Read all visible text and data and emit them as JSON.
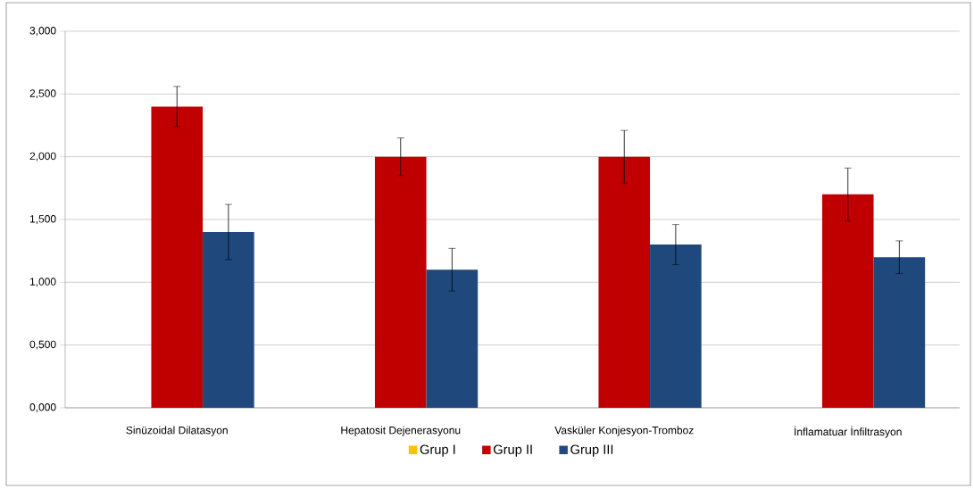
{
  "chart_data": {
    "type": "bar",
    "categories": [
      "Sinüzoidal Dilatasyon",
      "Hepatosit Dejenerasyonu",
      "Vasküler Konjesyon-Tromboz",
      "İnflamatuar İnfiltrasyon"
    ],
    "series": [
      {
        "name": "Grup I",
        "color": "#ffc000",
        "values": [
          0,
          0,
          0,
          0
        ]
      },
      {
        "name": "Grup II",
        "color": "#c00000",
        "values": [
          2.4,
          2.0,
          2.0,
          1.7
        ],
        "errors": [
          0.16,
          0.15,
          0.21,
          0.21
        ]
      },
      {
        "name": "Grup III",
        "color": "#1f497d",
        "values": [
          1.4,
          1.1,
          1.3,
          1.2
        ],
        "errors": [
          0.22,
          0.17,
          0.16,
          0.13
        ]
      }
    ],
    "ylim": [
      0,
      3
    ],
    "yticks": [
      {
        "value": 0,
        "label": "0,000"
      },
      {
        "value": 0.5,
        "label": "0,500"
      },
      {
        "value": 1,
        "label": "1,000"
      },
      {
        "value": 1.5,
        "label": "1,500"
      },
      {
        "value": 2,
        "label": "2,000"
      },
      {
        "value": 2.5,
        "label": "2,500"
      },
      {
        "value": 3,
        "label": "3,000"
      }
    ],
    "grid": "y",
    "legend": "bottom"
  }
}
